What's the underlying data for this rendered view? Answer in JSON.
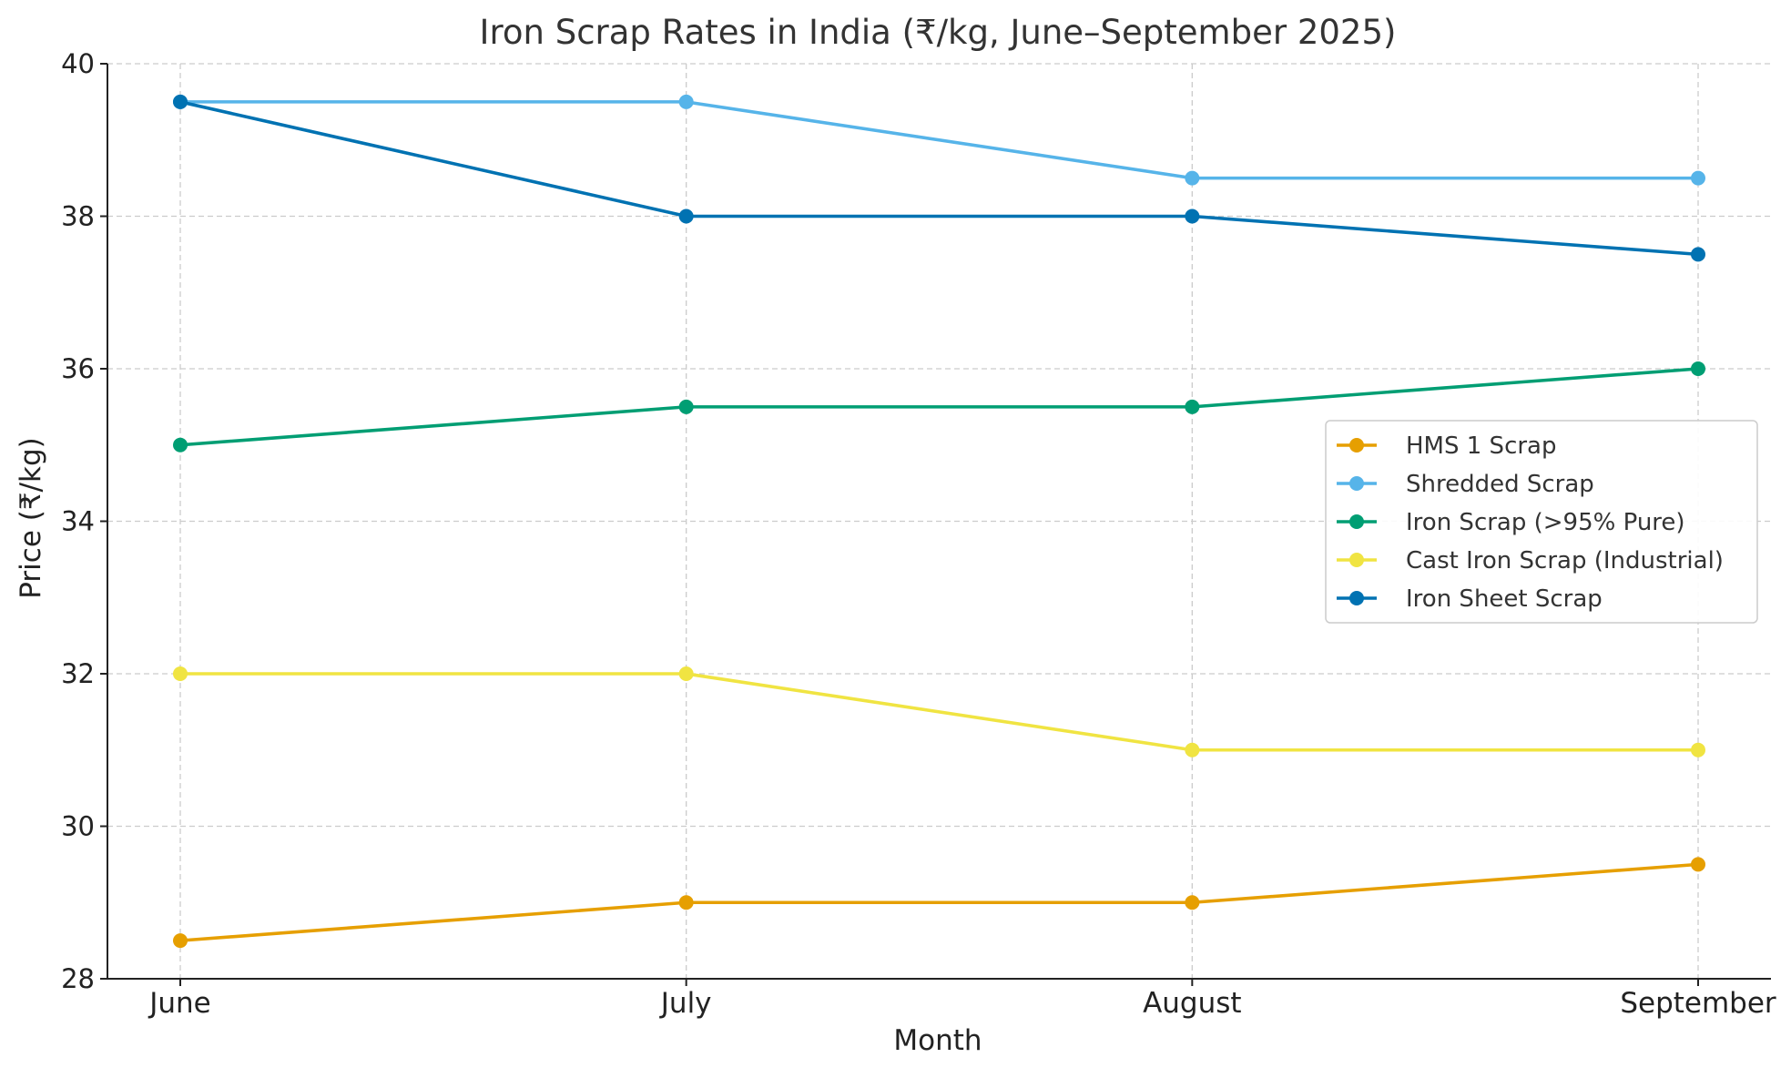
{
  "chart_data": {
    "type": "line",
    "title": "Iron Scrap Rates in India (₹/kg, June–September 2025)",
    "xlabel": "Month",
    "ylabel": "Price (₹/kg)",
    "categories": [
      "June",
      "July",
      "August",
      "September"
    ],
    "ylim": [
      28,
      40
    ],
    "yticks": [
      28,
      30,
      32,
      34,
      36,
      38,
      40
    ],
    "grid": true,
    "legend_position": "right",
    "series": [
      {
        "name": "HMS 1 Scrap",
        "color": "#E69F00",
        "values": [
          28.5,
          29,
          29,
          29.5
        ]
      },
      {
        "name": "Shredded Scrap",
        "color": "#56B4E9",
        "values": [
          39.5,
          39.5,
          38.5,
          38.5
        ]
      },
      {
        "name": "Iron Scrap (>95% Pure)",
        "color": "#009E73",
        "values": [
          35,
          35.5,
          35.5,
          36
        ]
      },
      {
        "name": "Cast Iron Scrap (Industrial)",
        "color": "#F0E442",
        "values": [
          32,
          32,
          31,
          31
        ]
      },
      {
        "name": "Iron Sheet Scrap",
        "color": "#0072B2",
        "values": [
          39.5,
          38,
          38,
          37.5
        ]
      }
    ]
  }
}
